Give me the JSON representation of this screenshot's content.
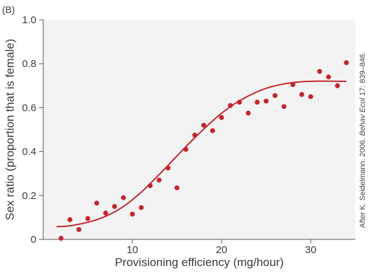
{
  "panel_label": "(B)",
  "credit": {
    "prefix": "After K. Seidelmann. 2006. ",
    "journal": "Behav Ecol",
    "suffix": " 17: 839–846."
  },
  "colors": {
    "plot_background": "#f3f3f3",
    "points": "#c1272d",
    "curve": "#c1272d",
    "axis": "#555555"
  },
  "chart_data": {
    "type": "scatter",
    "title": "",
    "xlabel": "Provisioning efficiency (mg/hour)",
    "ylabel": "Sex ratio (proportion that is female)",
    "xlim": [
      0,
      35
    ],
    "ylim": [
      0,
      1.0
    ],
    "x_ticks": [
      10,
      20,
      30
    ],
    "y_ticks": [
      0,
      0.2,
      0.4,
      0.6,
      0.8,
      1.0
    ],
    "y_tick_labels": [
      "0",
      "0.2",
      "0.4",
      "0.6",
      "0.8",
      "1.0"
    ],
    "grid": false,
    "legend": "none",
    "series": [
      {
        "kind": "points",
        "x": [
          2,
          3,
          4,
          5,
          6,
          7,
          8,
          9,
          10,
          11,
          12,
          13,
          14,
          15,
          16,
          17,
          18,
          19,
          20,
          21,
          22,
          23,
          24,
          25,
          26,
          27,
          28,
          29,
          30,
          31,
          32,
          33,
          34
        ],
        "y": [
          0.005,
          0.09,
          0.045,
          0.095,
          0.165,
          0.12,
          0.15,
          0.19,
          0.115,
          0.145,
          0.245,
          0.27,
          0.325,
          0.235,
          0.41,
          0.475,
          0.52,
          0.495,
          0.555,
          0.61,
          0.625,
          0.575,
          0.625,
          0.63,
          0.655,
          0.605,
          0.705,
          0.66,
          0.65,
          0.765,
          0.74,
          0.7,
          0.805
        ]
      },
      {
        "kind": "fitted-curve",
        "x": [
          1.5,
          3,
          5,
          7,
          9,
          11,
          13,
          15,
          17,
          19,
          21,
          23,
          25,
          27,
          29,
          31,
          33,
          34
        ],
        "y": [
          0.058,
          0.062,
          0.078,
          0.105,
          0.15,
          0.215,
          0.295,
          0.38,
          0.463,
          0.54,
          0.605,
          0.653,
          0.688,
          0.708,
          0.718,
          0.721,
          0.72,
          0.72
        ]
      }
    ]
  }
}
